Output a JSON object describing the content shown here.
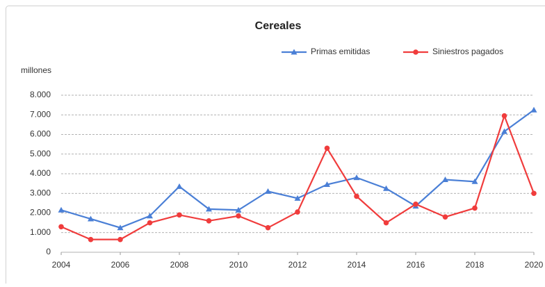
{
  "chart_data": {
    "type": "line",
    "title": "Cereales",
    "y_label": "millones",
    "x": [
      2004,
      2005,
      2006,
      2007,
      2008,
      2009,
      2010,
      2011,
      2012,
      2013,
      2014,
      2015,
      2016,
      2017,
      2018,
      2019,
      2020
    ],
    "series": [
      {
        "name": "Primas emitidas",
        "color": "#4a7fd6",
        "marker": "triangle",
        "values": [
          2150,
          1700,
          1250,
          1850,
          3350,
          2200,
          2150,
          3100,
          2750,
          3450,
          3800,
          3250,
          2350,
          3700,
          3600,
          6150,
          7250
        ]
      },
      {
        "name": "Siniestros pagados",
        "color": "#f03c3c",
        "marker": "circle",
        "values": [
          1300,
          650,
          650,
          1500,
          1900,
          1600,
          1850,
          1250,
          2050,
          5300,
          2850,
          1500,
          2450,
          1800,
          2250,
          6950,
          3000
        ]
      }
    ],
    "xlim": [
      2004,
      2020
    ],
    "xticks": [
      2004,
      2006,
      2008,
      2010,
      2012,
      2014,
      2016,
      2018,
      2020
    ],
    "ylim": [
      0,
      8000
    ],
    "yticks": [
      0,
      {
        "value": 1000,
        "label": "1.000"
      },
      {
        "value": 2000,
        "label": "2.000"
      },
      {
        "value": 3000,
        "label": "3.000"
      },
      {
        "value": 4000,
        "label": "4.000"
      },
      {
        "value": 5000,
        "label": "5.000"
      },
      {
        "value": 6000,
        "label": "6.000"
      },
      {
        "value": 7000,
        "label": "7.000"
      },
      {
        "value": 8000,
        "label": "8.000"
      }
    ],
    "grid": true,
    "legend": "top-right"
  }
}
